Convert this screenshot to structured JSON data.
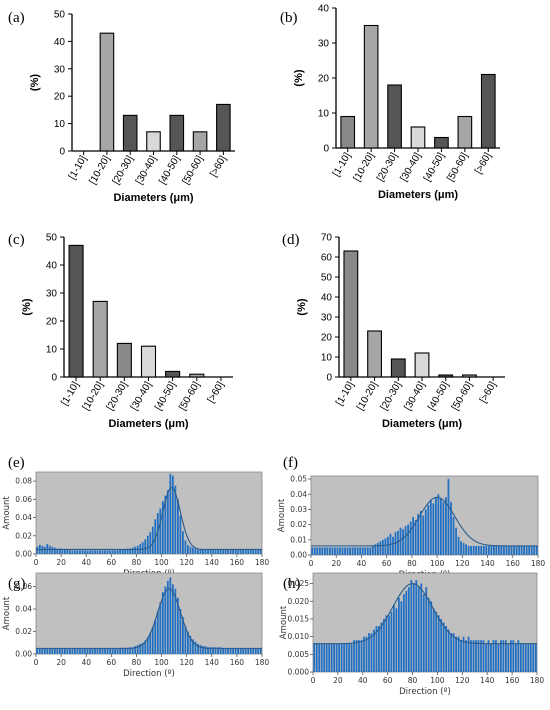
{
  "chart_data": [
    {
      "panel": "(a)",
      "type": "bar",
      "categories": [
        "[1-10]",
        "[10-20]",
        "[20-30]",
        "[30-40]",
        "[40-50]",
        "[50-60]",
        "[>60]"
      ],
      "values": [
        0,
        43,
        13,
        7,
        13,
        7,
        17
      ],
      "colors": [
        "#888888",
        "#a6a6a6",
        "#555555",
        "#d9d9d9",
        "#555555",
        "#a6a6a6",
        "#555555"
      ],
      "xlabel": "Diameters (μm)",
      "ylabel": "(%)",
      "ylim": [
        0,
        50
      ],
      "yticks": [
        0,
        10,
        20,
        30,
        40,
        50
      ]
    },
    {
      "panel": "(b)",
      "type": "bar",
      "categories": [
        "[1-10]",
        "[10-20]",
        "[20-30]",
        "[30-40]",
        "[40-50]",
        "[50-60]",
        "[>60]"
      ],
      "values": [
        9,
        35,
        18,
        6,
        3,
        9,
        21
      ],
      "colors": [
        "#888888",
        "#a6a6a6",
        "#555555",
        "#d9d9d9",
        "#555555",
        "#a6a6a6",
        "#555555"
      ],
      "xlabel": "Diameters (μm)",
      "ylabel": "(%)",
      "ylim": [
        0,
        40
      ],
      "yticks": [
        0,
        10,
        20,
        30,
        40
      ]
    },
    {
      "panel": "(c)",
      "type": "bar",
      "categories": [
        "[1-10]",
        "[10-20]",
        "[20-30]",
        "[30-40]",
        "[40-50]",
        "[50-60]",
        "[>60]"
      ],
      "values": [
        47,
        27,
        12,
        11,
        2,
        1,
        0
      ],
      "colors": [
        "#555555",
        "#a6a6a6",
        "#888888",
        "#d9d9d9",
        "#555555",
        "#a6a6a6",
        "#555555"
      ],
      "xlabel": "Diameters (μm)",
      "ylabel": "(%)",
      "ylim": [
        0,
        50
      ],
      "yticks": [
        0,
        10,
        20,
        30,
        40,
        50
      ]
    },
    {
      "panel": "(d)",
      "type": "bar",
      "categories": [
        "[1-10]",
        "[10-20]",
        "[20-30]",
        "[30-40]",
        "[40-50]",
        "[50-60]",
        "[>60]"
      ],
      "values": [
        63,
        23,
        9,
        12,
        1,
        1,
        0
      ],
      "colors": [
        "#888888",
        "#a6a6a6",
        "#555555",
        "#d9d9d9",
        "#555555",
        "#a6a6a6",
        "#555555"
      ],
      "xlabel": "Diameters (μm)",
      "ylabel": "(%)",
      "ylim": [
        0,
        70
      ],
      "yticks": [
        0,
        10,
        20,
        30,
        40,
        50,
        60,
        70
      ]
    },
    {
      "panel": "(e)",
      "type": "bar",
      "series_kind": "histogram-with-fit",
      "bar_color": "#1f6fc4",
      "fit_color": "#2a5b8a",
      "background": "#c0c0c0",
      "xlabel": "Direction (º)",
      "ylabel": "Amount",
      "xlim": [
        0,
        180
      ],
      "xticks": [
        0,
        20,
        40,
        60,
        80,
        100,
        120,
        140,
        160,
        180
      ],
      "ylim": [
        0,
        0.09
      ],
      "yticks": [
        0.0,
        0.02,
        0.04,
        0.06,
        0.08
      ],
      "ytick_labels": [
        "0.00",
        "0.02",
        "0.04",
        "0.06",
        "0.08"
      ],
      "fit": {
        "baseline": 0.005,
        "peak_center": 108,
        "peak_height": 0.068,
        "peak_sigma": 7
      },
      "x": [
        0,
        2,
        4,
        6,
        8,
        10,
        12,
        14,
        16,
        18,
        20,
        22,
        24,
        26,
        28,
        30,
        32,
        34,
        36,
        38,
        40,
        42,
        44,
        46,
        48,
        50,
        52,
        54,
        56,
        58,
        60,
        62,
        64,
        66,
        68,
        70,
        72,
        74,
        76,
        78,
        80,
        82,
        84,
        86,
        88,
        90,
        92,
        94,
        96,
        98,
        100,
        102,
        104,
        106,
        108,
        110,
        112,
        114,
        116,
        118,
        120,
        122,
        124,
        126,
        128,
        130,
        132,
        134,
        136,
        138,
        140,
        142,
        144,
        146,
        148,
        150,
        152,
        154,
        156,
        158,
        160,
        162,
        164,
        166,
        168,
        170,
        172,
        174,
        176,
        178
      ],
      "values": [
        0.008,
        0.01,
        0.009,
        0.008,
        0.011,
        0.009,
        0.008,
        0.007,
        0.006,
        0.006,
        0.005,
        0.005,
        0.005,
        0.004,
        0.004,
        0.004,
        0.004,
        0.004,
        0.004,
        0.004,
        0.004,
        0.004,
        0.004,
        0.004,
        0.004,
        0.004,
        0.004,
        0.004,
        0.004,
        0.004,
        0.004,
        0.004,
        0.004,
        0.005,
        0.005,
        0.005,
        0.006,
        0.006,
        0.007,
        0.008,
        0.009,
        0.011,
        0.013,
        0.016,
        0.02,
        0.024,
        0.03,
        0.038,
        0.045,
        0.05,
        0.058,
        0.064,
        0.07,
        0.088,
        0.086,
        0.075,
        0.06,
        0.042,
        0.025,
        0.015,
        0.01,
        0.008,
        0.007,
        0.006,
        0.005,
        0.005,
        0.005,
        0.005,
        0.005,
        0.005,
        0.005,
        0.005,
        0.005,
        0.005,
        0.005,
        0.005,
        0.005,
        0.005,
        0.005,
        0.005,
        0.005,
        0.005,
        0.005,
        0.005,
        0.005,
        0.005,
        0.005,
        0.005,
        0.005,
        0.005
      ]
    },
    {
      "panel": "(f)",
      "type": "bar",
      "series_kind": "histogram-with-fit",
      "bar_color": "#1f6fc4",
      "fit_color": "#2a5b8a",
      "background": "#c0c0c0",
      "xlabel": "Direction (º)",
      "ylabel": "Amount",
      "xlim": [
        0,
        180
      ],
      "xticks": [
        0,
        20,
        40,
        60,
        80,
        100,
        120,
        140,
        160,
        180
      ],
      "ylim": [
        0,
        0.052
      ],
      "yticks": [
        0.0,
        0.01,
        0.02,
        0.03,
        0.04,
        0.05
      ],
      "ytick_labels": [
        "0.00",
        "0.01",
        "0.02",
        "0.03",
        "0.04",
        "0.05"
      ],
      "fit": {
        "baseline": 0.006,
        "peak_center": 100,
        "peak_height": 0.032,
        "peak_sigma": 14
      },
      "x": [
        0,
        2,
        4,
        6,
        8,
        10,
        12,
        14,
        16,
        18,
        20,
        22,
        24,
        26,
        28,
        30,
        32,
        34,
        36,
        38,
        40,
        42,
        44,
        46,
        48,
        50,
        52,
        54,
        56,
        58,
        60,
        62,
        64,
        66,
        68,
        70,
        72,
        74,
        76,
        78,
        80,
        82,
        84,
        86,
        88,
        90,
        92,
        94,
        96,
        98,
        100,
        102,
        104,
        106,
        108,
        110,
        112,
        114,
        116,
        118,
        120,
        122,
        124,
        126,
        128,
        130,
        132,
        134,
        136,
        138,
        140,
        142,
        144,
        146,
        148,
        150,
        152,
        154,
        156,
        158,
        160,
        162,
        164,
        166,
        168,
        170,
        172,
        174,
        176,
        178
      ],
      "values": [
        0.005,
        0.005,
        0.005,
        0.005,
        0.005,
        0.005,
        0.005,
        0.005,
        0.005,
        0.005,
        0.005,
        0.005,
        0.005,
        0.005,
        0.005,
        0.005,
        0.005,
        0.005,
        0.005,
        0.005,
        0.005,
        0.005,
        0.005,
        0.005,
        0.006,
        0.007,
        0.008,
        0.009,
        0.01,
        0.011,
        0.012,
        0.014,
        0.012,
        0.015,
        0.016,
        0.018,
        0.017,
        0.019,
        0.02,
        0.022,
        0.025,
        0.023,
        0.027,
        0.029,
        0.026,
        0.03,
        0.033,
        0.036,
        0.034,
        0.038,
        0.04,
        0.037,
        0.035,
        0.038,
        0.05,
        0.035,
        0.025,
        0.018,
        0.012,
        0.009,
        0.008,
        0.007,
        0.006,
        0.006,
        0.006,
        0.006,
        0.006,
        0.006,
        0.006,
        0.006,
        0.006,
        0.006,
        0.006,
        0.006,
        0.006,
        0.006,
        0.006,
        0.006,
        0.006,
        0.006,
        0.006,
        0.006,
        0.006,
        0.006,
        0.006,
        0.006,
        0.006,
        0.006,
        0.006,
        0.006
      ]
    },
    {
      "panel": "(g)",
      "type": "bar",
      "series_kind": "histogram-with-fit",
      "bar_color": "#1f6fc4",
      "fit_color": "#2a5b8a",
      "background": "#c0c0c0",
      "xlabel": "Direction (º)",
      "ylabel": "Amount",
      "xlim": [
        0,
        180
      ],
      "xticks": [
        0,
        20,
        40,
        60,
        80,
        100,
        120,
        140,
        160,
        180
      ],
      "ylim": [
        0,
        0.072
      ],
      "yticks": [
        0.0,
        0.02,
        0.04,
        0.06
      ],
      "ytick_labels": [
        "0.00",
        "0.02",
        "0.04",
        "0.06"
      ],
      "fit": {
        "baseline": 0.005,
        "peak_center": 106,
        "peak_height": 0.053,
        "peak_sigma": 9
      },
      "x": [
        0,
        2,
        4,
        6,
        8,
        10,
        12,
        14,
        16,
        18,
        20,
        22,
        24,
        26,
        28,
        30,
        32,
        34,
        36,
        38,
        40,
        42,
        44,
        46,
        48,
        50,
        52,
        54,
        56,
        58,
        60,
        62,
        64,
        66,
        68,
        70,
        72,
        74,
        76,
        78,
        80,
        82,
        84,
        86,
        88,
        90,
        92,
        94,
        96,
        98,
        100,
        102,
        104,
        106,
        108,
        110,
        112,
        114,
        116,
        118,
        120,
        122,
        124,
        126,
        128,
        130,
        132,
        134,
        136,
        138,
        140,
        142,
        144,
        146,
        148,
        150,
        152,
        154,
        156,
        158,
        160,
        162,
        164,
        166,
        168,
        170,
        172,
        174,
        176,
        178
      ],
      "values": [
        0.005,
        0.005,
        0.005,
        0.005,
        0.005,
        0.005,
        0.005,
        0.005,
        0.005,
        0.005,
        0.005,
        0.005,
        0.005,
        0.005,
        0.005,
        0.005,
        0.005,
        0.005,
        0.005,
        0.005,
        0.005,
        0.005,
        0.005,
        0.005,
        0.005,
        0.005,
        0.005,
        0.005,
        0.005,
        0.005,
        0.005,
        0.005,
        0.005,
        0.005,
        0.005,
        0.005,
        0.005,
        0.006,
        0.006,
        0.007,
        0.008,
        0.009,
        0.01,
        0.012,
        0.015,
        0.019,
        0.024,
        0.03,
        0.038,
        0.046,
        0.055,
        0.06,
        0.065,
        0.068,
        0.062,
        0.058,
        0.05,
        0.04,
        0.033,
        0.025,
        0.02,
        0.016,
        0.013,
        0.011,
        0.009,
        0.008,
        0.007,
        0.007,
        0.006,
        0.006,
        0.006,
        0.006,
        0.006,
        0.006,
        0.005,
        0.005,
        0.005,
        0.005,
        0.005,
        0.005,
        0.005,
        0.005,
        0.005,
        0.005,
        0.005,
        0.005,
        0.005,
        0.005,
        0.005,
        0.005
      ]
    },
    {
      "panel": "(h)",
      "type": "bar",
      "series_kind": "histogram-with-fit",
      "bar_color": "#1f6fc4",
      "fit_color": "#2a5b8a",
      "background": "#c0c0c0",
      "xlabel": "Direction (º)",
      "ylabel": "Amount",
      "xlim": [
        0,
        180
      ],
      "xticks": [
        0,
        20,
        40,
        60,
        80,
        100,
        120,
        140,
        160,
        180
      ],
      "ylim": [
        0,
        0.028
      ],
      "yticks": [
        0.0,
        0.005,
        0.01,
        0.015,
        0.02,
        0.025
      ],
      "ytick_labels": [
        "0.000",
        "0.005",
        "0.010",
        "0.015",
        "0.020",
        "0.025"
      ],
      "fit": {
        "baseline": 0.008,
        "peak_center": 80,
        "peak_height": 0.017,
        "peak_sigma": 16
      },
      "x": [
        0,
        2,
        4,
        6,
        8,
        10,
        12,
        14,
        16,
        18,
        20,
        22,
        24,
        26,
        28,
        30,
        32,
        34,
        36,
        38,
        40,
        42,
        44,
        46,
        48,
        50,
        52,
        54,
        56,
        58,
        60,
        62,
        64,
        66,
        68,
        70,
        72,
        74,
        76,
        78,
        80,
        82,
        84,
        86,
        88,
        90,
        92,
        94,
        96,
        98,
        100,
        102,
        104,
        106,
        108,
        110,
        112,
        114,
        116,
        118,
        120,
        122,
        124,
        126,
        128,
        130,
        132,
        134,
        136,
        138,
        140,
        142,
        144,
        146,
        148,
        150,
        152,
        154,
        156,
        158,
        160,
        162,
        164,
        166,
        168,
        170,
        172,
        174,
        176,
        178
      ],
      "values": [
        0.008,
        0.008,
        0.008,
        0.008,
        0.008,
        0.008,
        0.008,
        0.008,
        0.008,
        0.008,
        0.008,
        0.008,
        0.008,
        0.008,
        0.008,
        0.008,
        0.009,
        0.009,
        0.009,
        0.009,
        0.01,
        0.01,
        0.011,
        0.011,
        0.012,
        0.013,
        0.013,
        0.014,
        0.015,
        0.016,
        0.016,
        0.017,
        0.019,
        0.018,
        0.021,
        0.02,
        0.022,
        0.023,
        0.024,
        0.026,
        0.025,
        0.026,
        0.024,
        0.025,
        0.022,
        0.024,
        0.021,
        0.02,
        0.018,
        0.017,
        0.016,
        0.015,
        0.014,
        0.013,
        0.012,
        0.011,
        0.011,
        0.01,
        0.01,
        0.009,
        0.01,
        0.009,
        0.01,
        0.009,
        0.009,
        0.009,
        0.009,
        0.009,
        0.009,
        0.008,
        0.009,
        0.008,
        0.009,
        0.009,
        0.008,
        0.009,
        0.009,
        0.009,
        0.008,
        0.009,
        0.009,
        0.008,
        0.009,
        0.008,
        0.008,
        0.008,
        0.008,
        0.008,
        0.008,
        0.008
      ]
    }
  ]
}
